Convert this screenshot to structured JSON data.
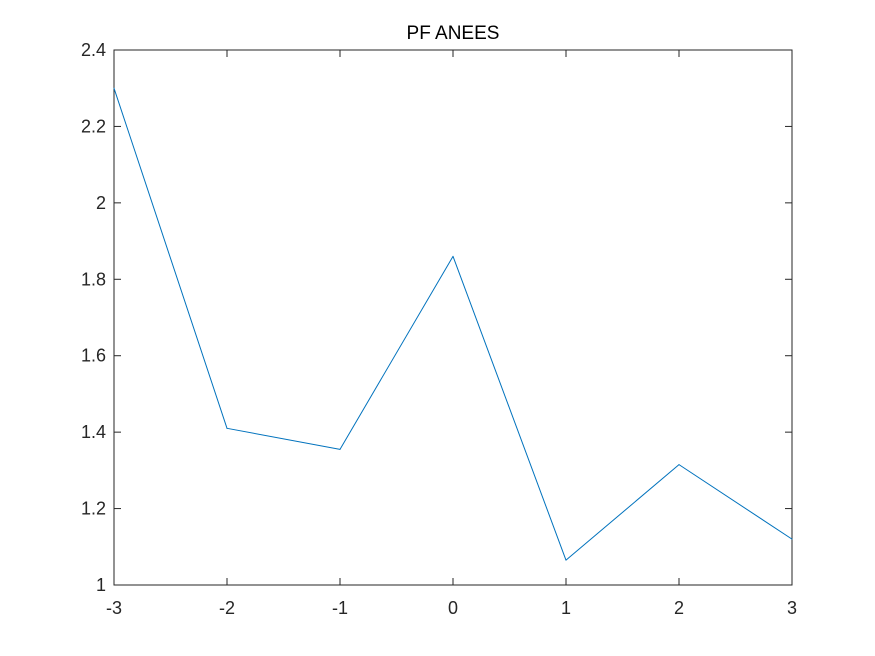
{
  "chart_data": {
    "type": "line",
    "title": "PF ANEES",
    "xlabel": "",
    "ylabel": "",
    "x": [
      -3,
      -2,
      -1,
      0,
      1,
      2,
      3
    ],
    "series": [
      {
        "values": [
          2.3,
          1.41,
          1.355,
          1.86,
          1.065,
          1.315,
          1.12
        ],
        "color": "#0072BD"
      }
    ],
    "xlim": [
      -3,
      3
    ],
    "ylim": [
      1,
      2.4
    ],
    "xticks": [
      -3,
      -2,
      -1,
      0,
      1,
      2,
      3
    ],
    "xtick_labels": [
      "-3",
      "-2",
      "-1",
      "0",
      "1",
      "2",
      "3"
    ],
    "yticks": [
      1,
      1.2,
      1.4,
      1.6,
      1.8,
      2,
      2.2,
      2.4
    ],
    "ytick_labels": [
      "1",
      "1.2",
      "1.4",
      "1.6",
      "1.8",
      "2",
      "2.2",
      "2.4"
    ],
    "grid": false,
    "legend": "none",
    "axis_color": "#262626"
  }
}
